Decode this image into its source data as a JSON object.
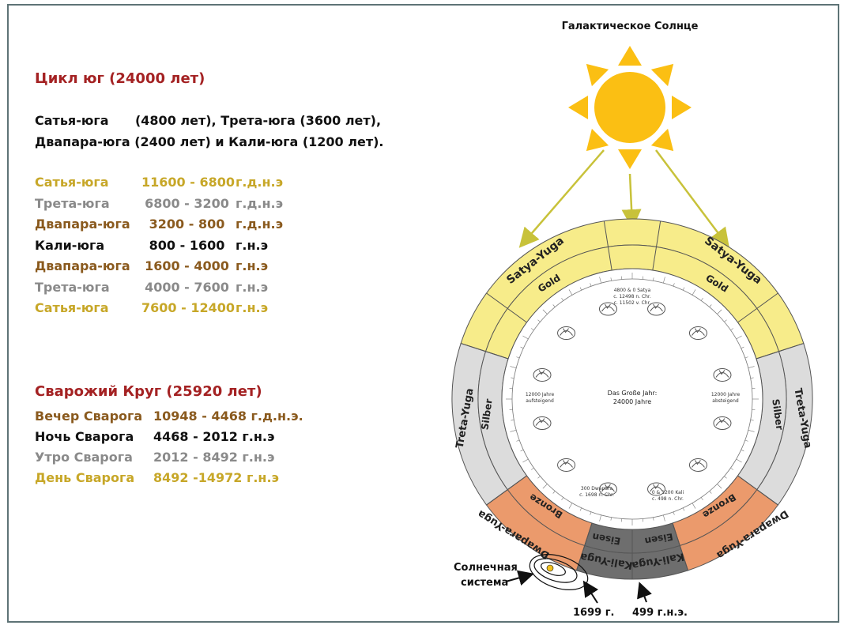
{
  "yuga_cycle": {
    "title": "Цикл юг (24000 лет)",
    "summary_line1": "Сатья-юга      (4800 лет), Трета-юга (3600 лет),",
    "summary_line2": "Двапара-юга (2400 лет) и Кали-юга (1200 лет).",
    "periods": [
      {
        "name": "Сатья-юга",
        "range": "11600 - 6800",
        "era": "г.д.н.э",
        "color": "#c7a728"
      },
      {
        "name": "Трета-юга",
        "range": "6800 - 3200",
        "era": "г.д.н.э",
        "color": "#8a8a8a"
      },
      {
        "name": "Двапара-юга",
        "range": "3200 - 800",
        "era": "г.д.н.э",
        "color": "#8a5a1e"
      },
      {
        "name": "Кали-юга",
        "range": "800 - 1600",
        "era": "г.н.э",
        "color": "#111111"
      },
      {
        "name": "Двапара-юга",
        "range": "1600 - 4000",
        "era": "г.н.э",
        "color": "#8a5a1e"
      },
      {
        "name": "Трета-юга",
        "range": "4000 - 7600",
        "era": "г.н.э",
        "color": "#8a8a8a"
      },
      {
        "name": "Сатья-юга",
        "range": "7600 - 12400",
        "era": "г.н.э",
        "color": "#c7a728"
      }
    ]
  },
  "svarog_circle": {
    "title": "Сварожий Круг (25920 лет)",
    "periods": [
      {
        "name": "Вечер Сварога",
        "range": "10948 - 4468 г.д.н.э.",
        "color": "#8a5a1e"
      },
      {
        "name": "Ночь Сварога",
        "range": "4468 - 2012 г.н.э",
        "color": "#111111"
      },
      {
        "name": "Утро Сварога",
        "range": "2012 - 8492 г.н.э",
        "color": "#8a8a8a"
      },
      {
        "name": "День Сварога",
        "range": "8492 -14972 г.н.э",
        "color": "#c7a728"
      }
    ]
  },
  "diagram": {
    "sun_label": "Галактическое Солнце",
    "solar_system_label1": "Солнечная",
    "solar_system_label2": "система",
    "marker_left": "1699 г.",
    "marker_right": "499 г.н.э.",
    "ring_labels": {
      "satya_left": "Satya-Yuga",
      "satya_right": "Satya-Yuga",
      "gold_left": "Gold",
      "gold_right": "Gold",
      "treta_left": "Treta-Yuga",
      "treta_right": "Treta-Yuga",
      "silber_left": "Silber",
      "silber_right": "Silber",
      "dwapara_left": "Dwapara-Yuga",
      "dwapara_right": "Dwapara-Yuga",
      "bronze_left": "Bronze",
      "bronze_right": "Bronze",
      "kali_left": "Kali-Yuga",
      "kali_right": "Kali-Yuga",
      "eisen_left": "Eisen",
      "eisen_right": "Eisen"
    },
    "center_line1": "Das Große Jahr:",
    "center_line2": "24000 Jahre",
    "top_note1": "4800 & 0 Satya",
    "top_note2": "c. 12498 n. Chr.",
    "top_note3": "c. 11502 v. Chr.",
    "left_note1": "12000 Jahre",
    "left_note2": "aufsteigend",
    "right_note1": "12000 Jahre",
    "right_note2": "absteigend",
    "bottom_left_note1": "300 Dwapara",
    "bottom_left_note2": "c. 1698 n. Chr.",
    "bottom_right_note1": "0 & 1200 Kali",
    "bottom_right_note2": "c. 498 n. Chr.",
    "colors": {
      "satya": "#f7ec8a",
      "treta": "#dcdcdc",
      "dwapara": "#eb9a6c",
      "kali": "#6e6e6e",
      "sun": "#fbbf13",
      "arrow": "#c8c23a"
    }
  }
}
